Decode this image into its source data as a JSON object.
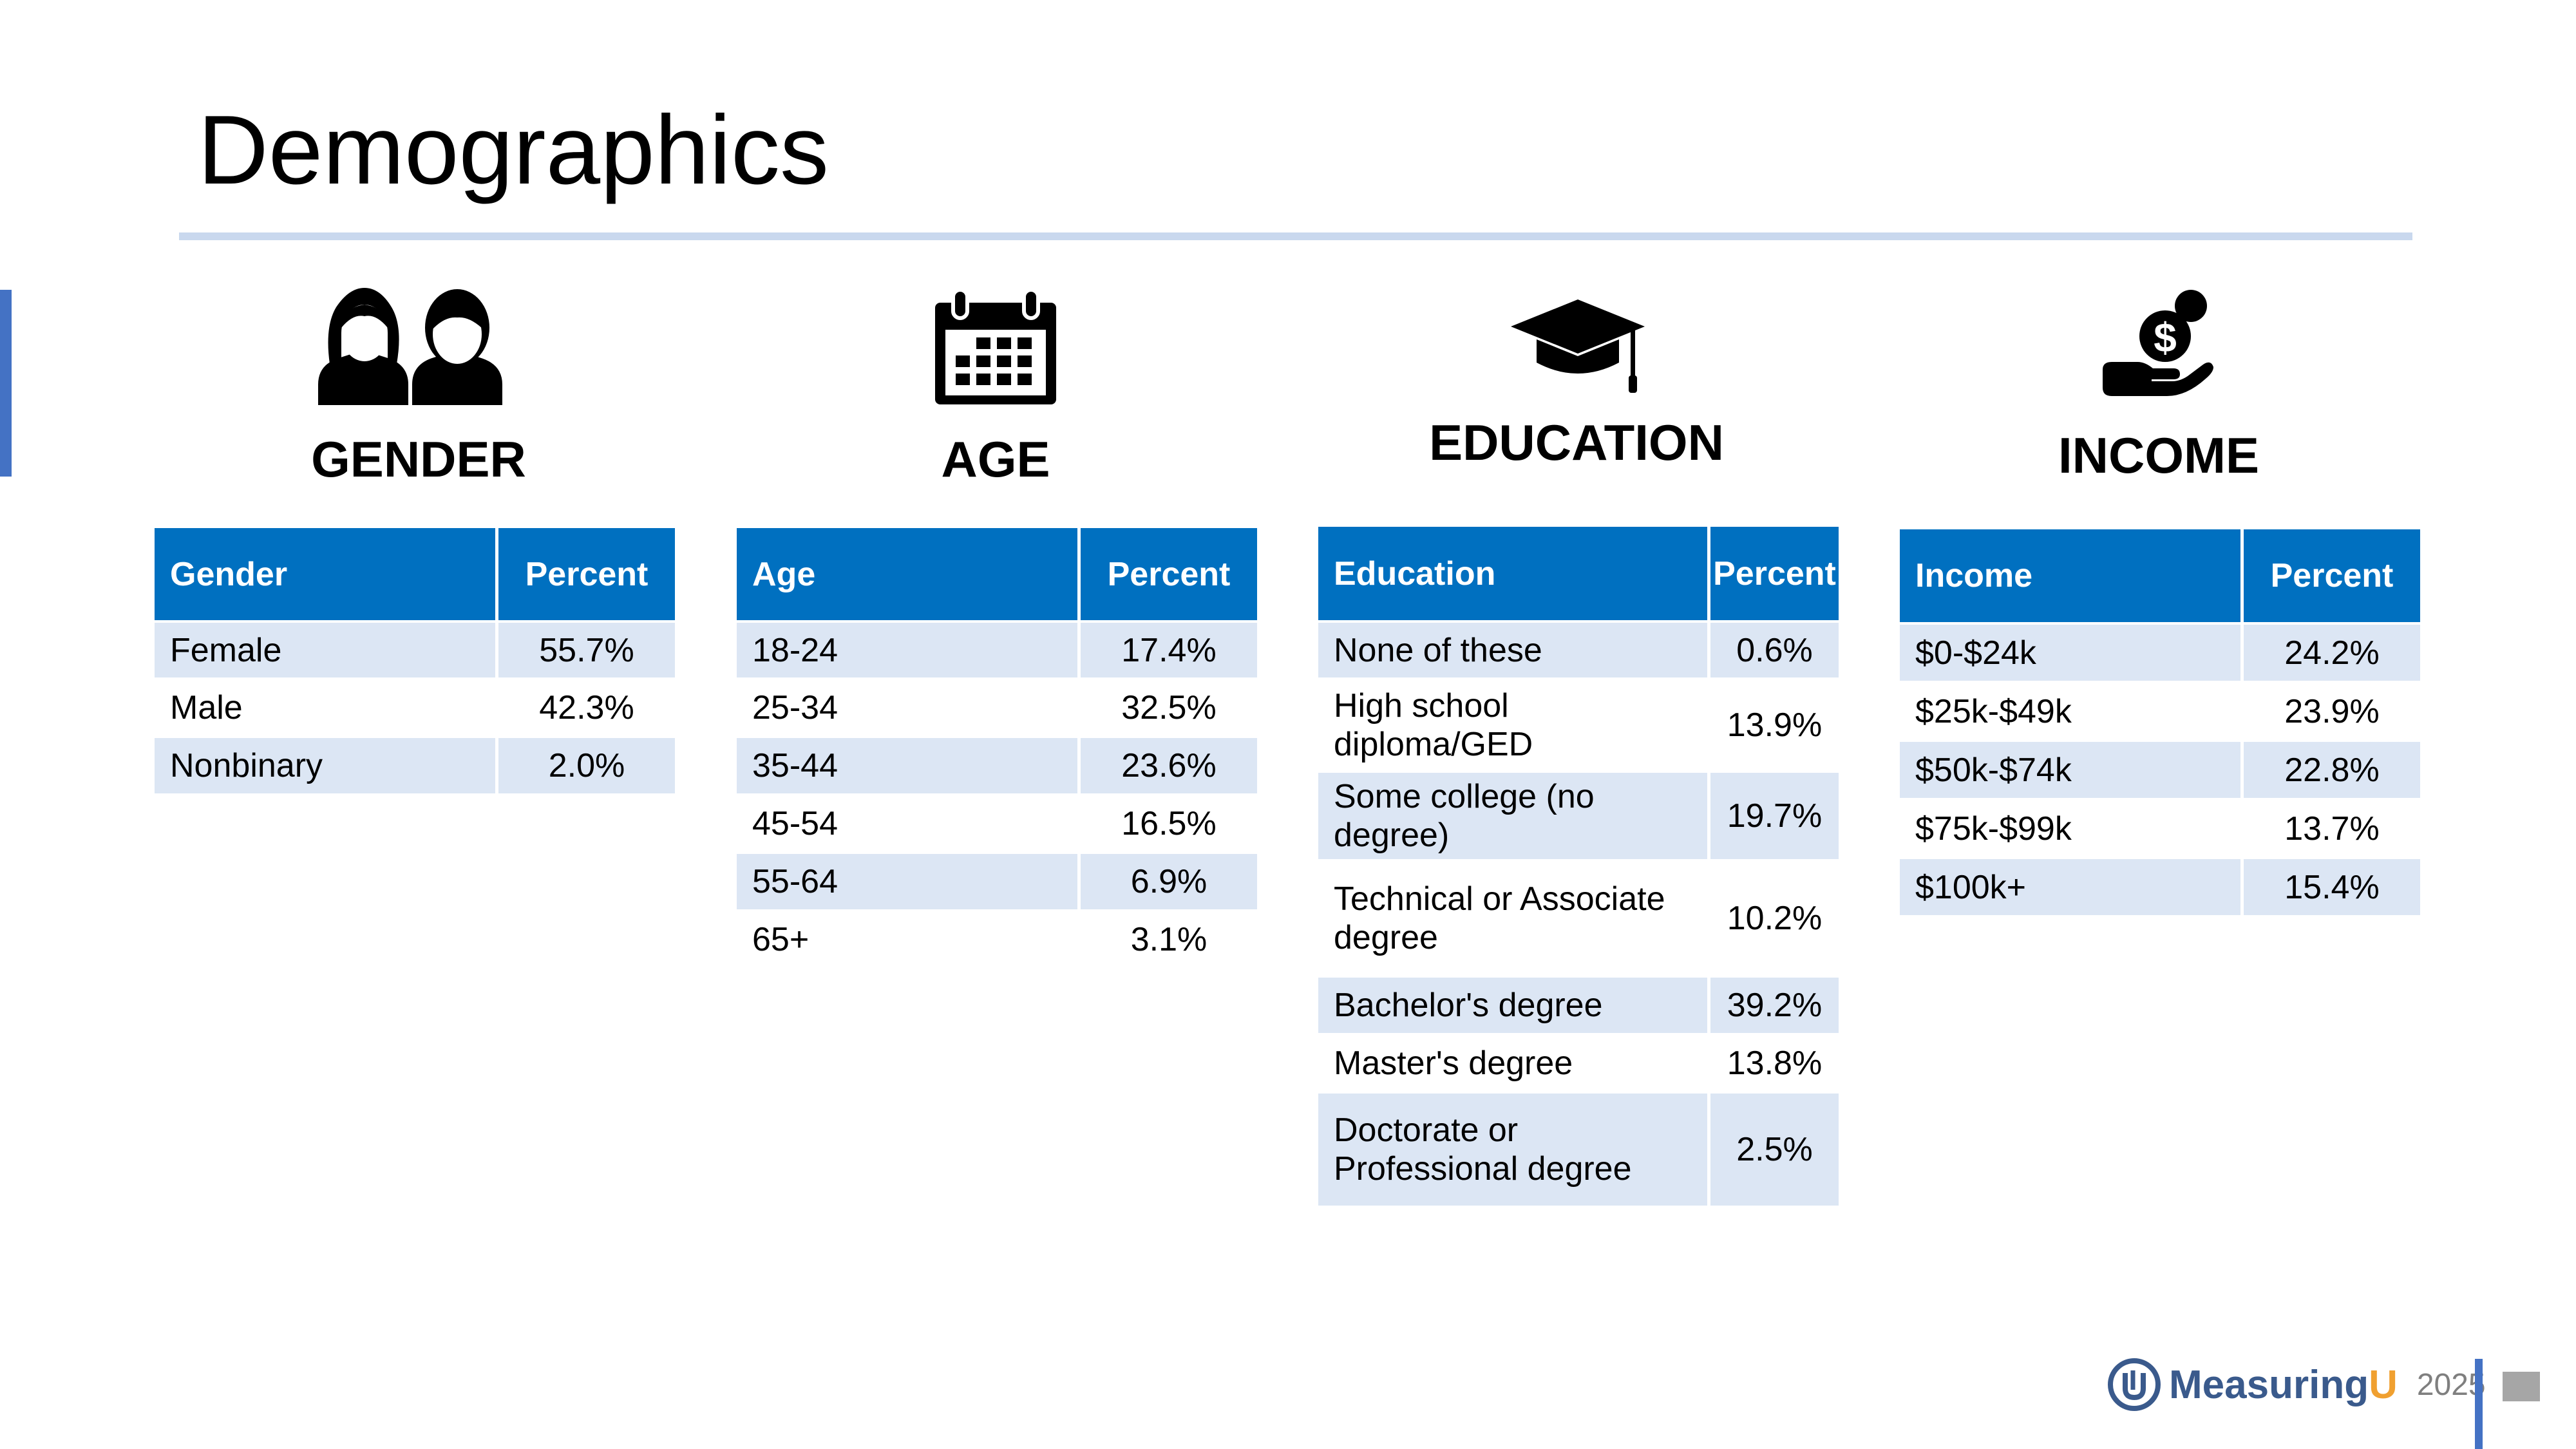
{
  "page": {
    "title": "Demographics"
  },
  "gender": {
    "heading": "GENDER",
    "icon": "people-icon",
    "header": [
      "Gender",
      "Percent"
    ],
    "rows": [
      [
        "Female",
        "55.7%"
      ],
      [
        "Male",
        "42.3%"
      ],
      [
        "Nonbinary",
        "2.0%"
      ]
    ]
  },
  "age": {
    "heading": "AGE",
    "icon": "calendar-icon",
    "header": [
      "Age",
      "Percent"
    ],
    "rows": [
      [
        "18-24",
        "17.4%"
      ],
      [
        "25-34",
        "32.5%"
      ],
      [
        "35-44",
        "23.6%"
      ],
      [
        "45-54",
        "16.5%"
      ],
      [
        "55-64",
        "6.9%"
      ],
      [
        "65+",
        "3.1%"
      ]
    ]
  },
  "education": {
    "heading": "EDUCATION",
    "icon": "graduation-cap-icon",
    "header": [
      "Education",
      "Percent"
    ],
    "rows": [
      [
        "None of these",
        "0.6%"
      ],
      [
        "High school diploma/GED",
        "13.9%"
      ],
      [
        "Some college (no degree)",
        "19.7%"
      ],
      [
        "Technical or Associate degree",
        "10.2%"
      ],
      [
        "Bachelor's degree",
        "39.2%"
      ],
      [
        "Master's degree",
        "13.8%"
      ],
      [
        "Doctorate or Professional degree",
        "2.5%"
      ]
    ]
  },
  "income": {
    "heading": "INCOME",
    "icon": "money-hand-icon",
    "header": [
      "Income",
      "Percent"
    ],
    "rows": [
      [
        "$0-$24k",
        "24.2%"
      ],
      [
        "$25k-$49k",
        "23.9%"
      ],
      [
        "$50k-$74k",
        "22.8%"
      ],
      [
        "$75k-$99k",
        "13.7%"
      ],
      [
        "$100k+",
        "15.4%"
      ]
    ]
  },
  "footer": {
    "brand_main": "Measuring",
    "brand_accent": "U",
    "year": "2025"
  },
  "colors": {
    "header_blue": "#0070c0",
    "row_band": "#dce6f4",
    "accent": "#4472c4",
    "brand_orange": "#f0a030"
  }
}
